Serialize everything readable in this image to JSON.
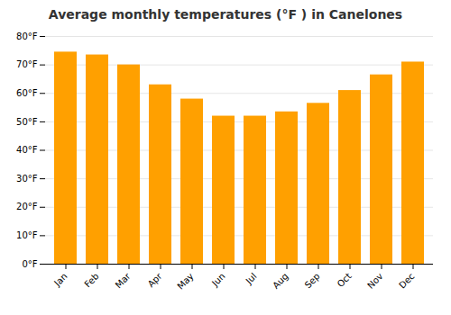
{
  "chart_data": {
    "type": "bar",
    "title": "Average monthly temperatures (°F ) in Canelones",
    "categories": [
      "Jan",
      "Feb",
      "Mar",
      "Apr",
      "May",
      "Jun",
      "Jul",
      "Aug",
      "Sep",
      "Oct",
      "Nov",
      "Dec"
    ],
    "values": [
      74.5,
      73.5,
      70.0,
      63.0,
      58.0,
      52.0,
      52.0,
      53.5,
      56.5,
      61.0,
      66.5,
      71.0
    ],
    "color": "#FFA000",
    "ylim": [
      0,
      80
    ],
    "yticks": [
      {
        "value": 0,
        "label": "0°F"
      },
      {
        "value": 10,
        "label": "10°F"
      },
      {
        "value": 20,
        "label": "20°F"
      },
      {
        "value": 30,
        "label": "30°F"
      },
      {
        "value": 40,
        "label": "40°F"
      },
      {
        "value": 50,
        "label": "50°F"
      },
      {
        "value": 60,
        "label": "60°F"
      },
      {
        "value": 70,
        "label": "70°F"
      },
      {
        "value": 80,
        "label": "80°F"
      }
    ],
    "grid": true
  }
}
